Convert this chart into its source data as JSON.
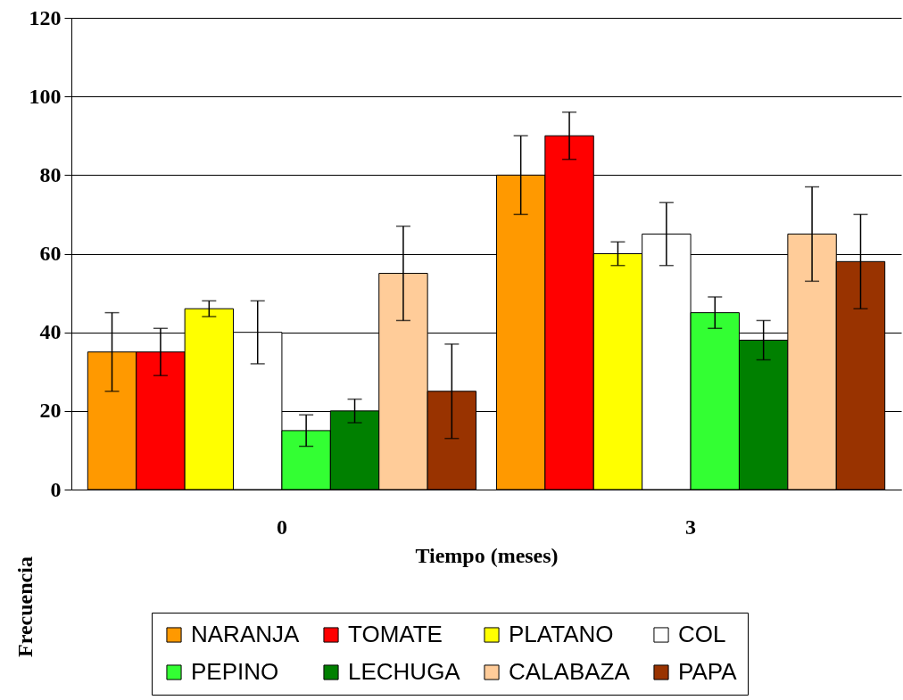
{
  "chart_data": {
    "type": "bar",
    "xlabel": "Tiempo (meses)",
    "ylabel": "Frecuencia",
    "categories": [
      "0",
      "3"
    ],
    "ylim": [
      0,
      120
    ],
    "yticks": [
      0,
      20,
      40,
      60,
      80,
      100,
      120
    ],
    "grid": "y",
    "legend": "bottom",
    "series": [
      {
        "name": "NARANJA",
        "color": "#ff9900",
        "values": [
          35,
          80
        ],
        "errors": [
          10,
          10
        ]
      },
      {
        "name": "TOMATE",
        "color": "#ff0000",
        "values": [
          35,
          90
        ],
        "errors": [
          6,
          6
        ]
      },
      {
        "name": "PLATANO",
        "color": "#ffff00",
        "values": [
          46,
          60
        ],
        "errors": [
          2,
          3
        ]
      },
      {
        "name": "COL",
        "color": "#ffffff",
        "values": [
          40,
          65
        ],
        "errors": [
          8,
          8
        ]
      },
      {
        "name": "PEPINO",
        "color": "#33ff33",
        "values": [
          15,
          45
        ],
        "errors": [
          4,
          4
        ]
      },
      {
        "name": "LECHUGA",
        "color": "#008000",
        "values": [
          20,
          38
        ],
        "errors": [
          3,
          5
        ]
      },
      {
        "name": "CALABAZA",
        "color": "#ffcc99",
        "values": [
          55,
          65
        ],
        "errors": [
          12,
          12
        ]
      },
      {
        "name": "PAPA",
        "color": "#993300",
        "values": [
          25,
          58
        ],
        "errors": [
          12,
          12
        ]
      }
    ]
  }
}
